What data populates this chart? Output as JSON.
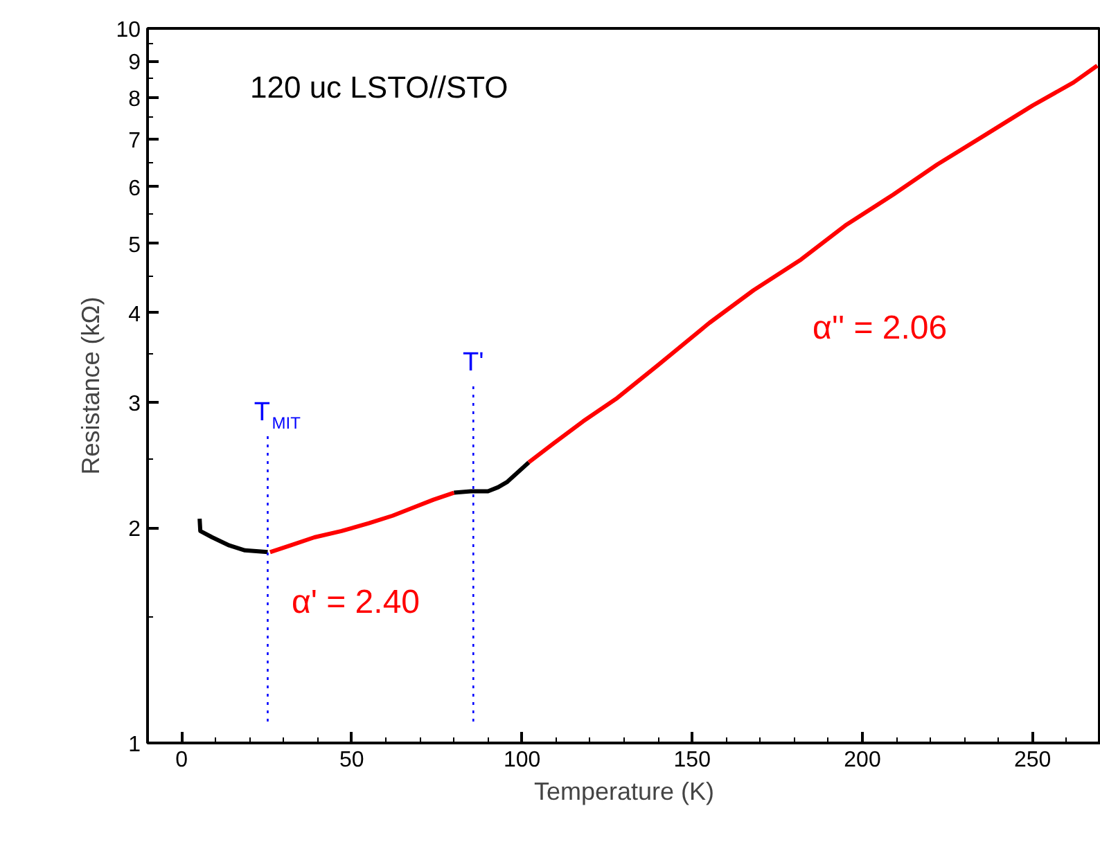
{
  "chart_data": {
    "type": "line",
    "xlabel": "Temperature (K)",
    "ylabel": "Resistance (kΩ)",
    "log": "y",
    "xlim": [
      -10,
      270
    ],
    "xticks": [
      0,
      50,
      100,
      150,
      200,
      250
    ],
    "ylim": [
      1,
      10
    ],
    "yticks": [
      1,
      2,
      3,
      4,
      5,
      6,
      7,
      8,
      9,
      10
    ],
    "grid": false,
    "marker": "none",
    "line_style": "solid",
    "series": [
      {
        "color": "#000000",
        "x": [
          5.3,
          5.5,
          9,
          14,
          18.6,
          25.3
        ],
        "values": [
          2.06,
          1.98,
          1.94,
          1.89,
          1.86,
          1.85
        ]
      },
      {
        "color": "#000000",
        "x": [
          80,
          85,
          90,
          93,
          95.7,
          102
        ],
        "values": [
          2.24,
          2.25,
          2.25,
          2.28,
          2.32,
          2.47
        ]
      },
      {
        "color": "#ff0000",
        "x": [
          26,
          32,
          39,
          47,
          55,
          62,
          68.6,
          74,
          80
        ],
        "values": [
          1.85,
          1.89,
          1.94,
          1.98,
          2.03,
          2.08,
          2.14,
          2.19,
          2.24
        ]
      },
      {
        "color": "#ff0000",
        "x": [
          102,
          109,
          118,
          128,
          140,
          155,
          168,
          182,
          195,
          209,
          222,
          236,
          250,
          262,
          269
        ],
        "values": [
          2.47,
          2.62,
          2.82,
          3.04,
          3.38,
          3.87,
          4.3,
          4.75,
          5.3,
          5.85,
          6.45,
          7.09,
          7.8,
          8.4,
          8.87
        ]
      }
    ],
    "ref_lines": [
      {
        "axis": "x",
        "value": 25.3,
        "label": "T$_{MIT}$",
        "color": "#0000ff",
        "line_style": "dotted"
      },
      {
        "axis": "x",
        "value": 85.7,
        "label": "T'",
        "color": "#0000ff",
        "line_style": "dotted"
      }
    ],
    "annotations": [
      "120 uc LSTO//STO",
      "α' = 2.40",
      "α'' = 2.06"
    ]
  }
}
